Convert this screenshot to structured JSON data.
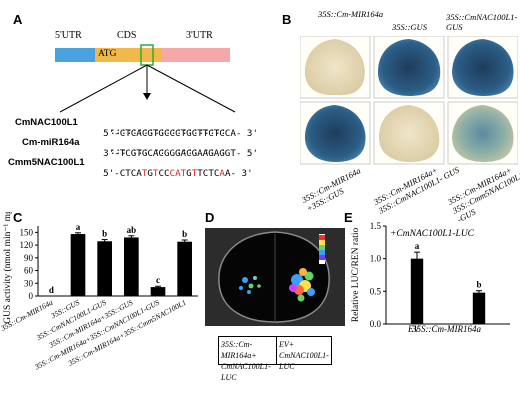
{
  "panel_a": {
    "label": "A",
    "utr5": "5'UTR",
    "cds": "CDS",
    "utr3": "3'UTR",
    "atg": "ATG",
    "rows": [
      {
        "name": "CmNAC100L1",
        "prefix": "5'-",
        "segments": [
          {
            "t": "CTCACGTGCCCTGCTTCTCCA",
            "red": false
          }
        ],
        "suffix": "- 3'"
      },
      {
        "name": "Cm-miR164a",
        "prefix": "3'-",
        "segments": [
          {
            "t": "TCGTGCACGGGACGAAGAGGT",
            "red": false
          }
        ],
        "suffix": "- 5'"
      },
      {
        "name": "Cmm5NAC100L1",
        "prefix": "5'-",
        "segments": [
          {
            "t": "CTCA",
            "red": false
          },
          {
            "t": "T",
            "red": true
          },
          {
            "t": "G",
            "red": false
          },
          {
            "t": "T",
            "red": true
          },
          {
            "t": "CC",
            "red": false
          },
          {
            "t": "CAT",
            "red": true
          },
          {
            "t": "G",
            "red": false
          },
          {
            "t": "T",
            "red": true
          },
          {
            "t": "TCTC",
            "red": false
          },
          {
            "t": "A",
            "red": true
          },
          {
            "t": "A",
            "red": false
          }
        ],
        "suffix": "- 3'"
      }
    ],
    "pair1": ":::::::::::::::::::::",
    "pair2": "::: ::: ::  :::: :: :"
  },
  "panel_b": {
    "label": "B",
    "top_labels": [
      "35S::Cm-MIR164a",
      "35S::GUS",
      "35S::CmNAC100L1-GUS"
    ],
    "bottom_labels": [
      "35S::Cm-MIR164a +35S::GUS",
      "35S::Cm-MIR164a+ 35S::CmNAC100L1- GUS",
      "35S::Cm-MIR164a+ 35S::Cmm5NAC100L1 -GUS"
    ]
  },
  "panel_c": {
    "label": "C"
  },
  "panel_d": {
    "label": "D",
    "left_caption": "35S::Cm-MIR164a+ CmNAC100L1-LUC",
    "right_caption": "EV+ CmNAC100L1-LUC"
  },
  "panel_e": {
    "label": "E"
  },
  "chart_data": [
    {
      "type": "bar",
      "ylabel": "GUS activity (nmol min⁻¹ mg⁻¹)",
      "ylim": [
        0,
        165
      ],
      "yticks": [
        0,
        30,
        60,
        90,
        120,
        150
      ],
      "categories": [
        "35S::Cm-MIR164a",
        "35S::GUS",
        "35S::CmNAC100L1-GUS",
        "35S::Cm-MIR164a+35S::GUS",
        "35S::Cm-MIR164a+35S::CmNAC100L1-GUS",
        "35S::Cm-MIR164a+35S::Cmm5NAC100L1"
      ],
      "values": [
        0.5,
        146,
        129,
        138,
        21,
        128
      ],
      "errors": [
        0,
        3,
        4,
        4,
        2,
        4
      ],
      "letters": [
        "d",
        "a",
        "b",
        "ab",
        "c",
        "b"
      ],
      "color": "#000000"
    },
    {
      "type": "bar",
      "title": "+CmNAC100L1-LUC",
      "ylabel": "Relative LUC/REN ratio",
      "ylim": [
        0,
        1.5
      ],
      "yticks": [
        0.0,
        0.5,
        1.0,
        1.5
      ],
      "categories": [
        "EV",
        "35S::Cm-MIR164a"
      ],
      "values": [
        1.0,
        0.48
      ],
      "errors": [
        0.1,
        0.03
      ],
      "letters": [
        "a",
        "b"
      ],
      "color": "#000000"
    }
  ]
}
